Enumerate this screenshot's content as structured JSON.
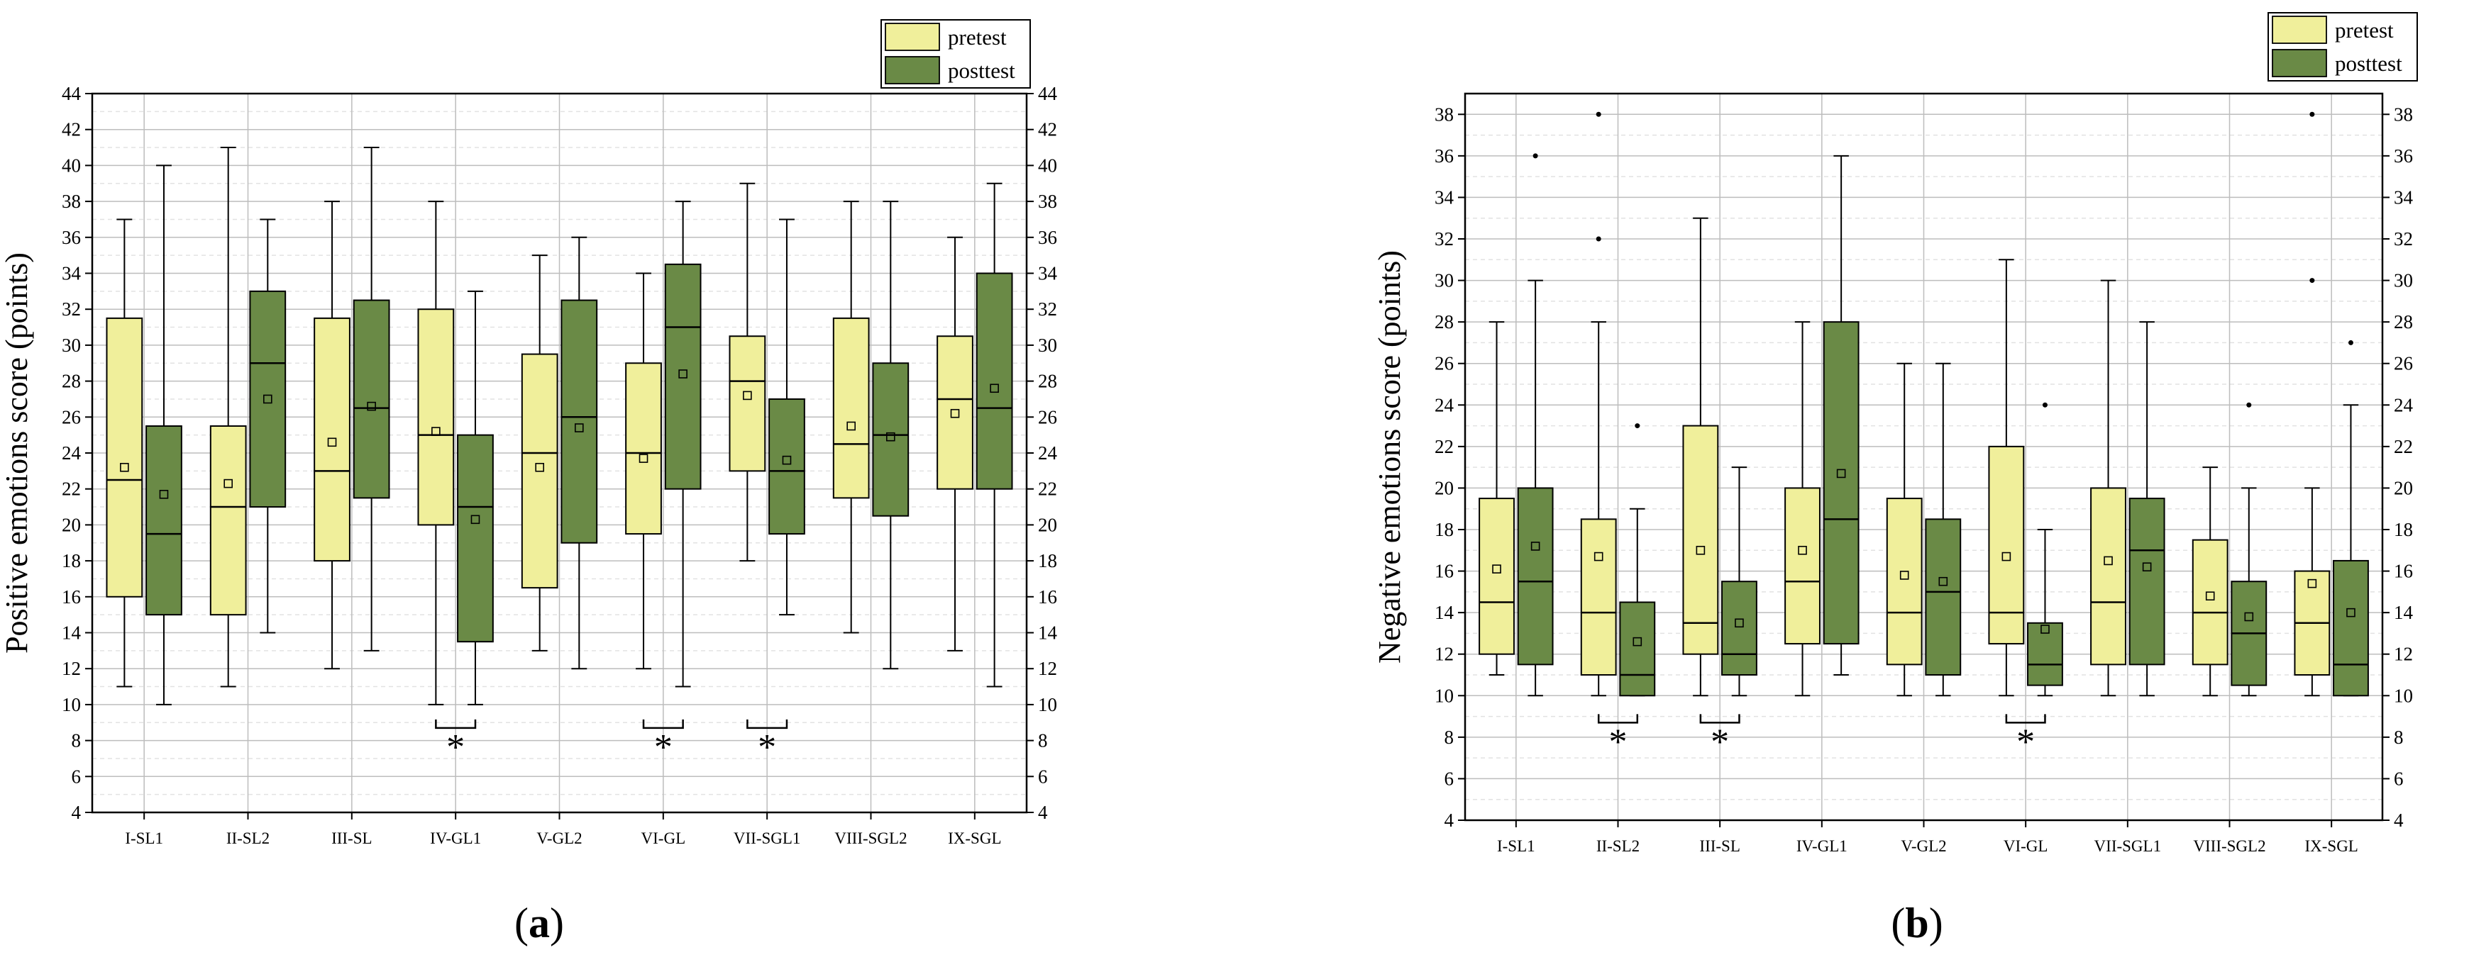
{
  "colors": {
    "pretest": "#f0ef9b",
    "posttest": "#6a8a46",
    "grid_major": "#bdbdbd",
    "grid_minor": "#e2e2e2"
  },
  "legend": {
    "pretest": "pretest",
    "posttest": "posttest"
  },
  "captions": {
    "a": "(a)",
    "b": "(b)"
  },
  "chart_data": [
    {
      "type": "box",
      "id": "a",
      "ylabel": "Positive emotions score (points)",
      "ylim": [
        4,
        44
      ],
      "yticks": [
        4,
        6,
        8,
        10,
        12,
        14,
        16,
        18,
        20,
        22,
        24,
        26,
        28,
        30,
        32,
        34,
        36,
        38,
        40,
        42,
        44
      ],
      "categories": [
        "I-SL1",
        "II-SL2",
        "III-SL",
        "IV-GL1",
        "V-GL2",
        "VI-GL",
        "VII-SGL1",
        "VIII-SGL2",
        "IX-SGL"
      ],
      "series": [
        {
          "name": "pretest",
          "boxes": [
            {
              "min": 11,
              "q1": 16,
              "median": 22.5,
              "q3": 31.5,
              "max": 37,
              "mean": 23.2,
              "outliers": []
            },
            {
              "min": 11,
              "q1": 15,
              "median": 21,
              "q3": 25.5,
              "max": 41,
              "mean": 22.3,
              "outliers": []
            },
            {
              "min": 12,
              "q1": 18,
              "median": 23,
              "q3": 31.5,
              "max": 38,
              "mean": 24.6,
              "outliers": []
            },
            {
              "min": 10,
              "q1": 20,
              "median": 25,
              "q3": 32,
              "max": 38,
              "mean": 25.2,
              "outliers": []
            },
            {
              "min": 13,
              "q1": 16.5,
              "median": 24,
              "q3": 29.5,
              "max": 35,
              "mean": 23.2,
              "outliers": []
            },
            {
              "min": 12,
              "q1": 19.5,
              "median": 24,
              "q3": 29,
              "max": 34,
              "mean": 23.7,
              "outliers": []
            },
            {
              "min": 18,
              "q1": 23,
              "median": 28,
              "q3": 30.5,
              "max": 39,
              "mean": 27.2,
              "outliers": []
            },
            {
              "min": 14,
              "q1": 21.5,
              "median": 24.5,
              "q3": 31.5,
              "max": 38,
              "mean": 25.5,
              "outliers": []
            },
            {
              "min": 13,
              "q1": 22,
              "median": 27,
              "q3": 30.5,
              "max": 36,
              "mean": 26.2,
              "outliers": []
            }
          ]
        },
        {
          "name": "posttest",
          "boxes": [
            {
              "min": 10,
              "q1": 15,
              "median": 19.5,
              "q3": 25.5,
              "max": 40,
              "mean": 21.7,
              "outliers": []
            },
            {
              "min": 14,
              "q1": 21,
              "median": 29,
              "q3": 33,
              "max": 37,
              "mean": 27,
              "outliers": []
            },
            {
              "min": 13,
              "q1": 21.5,
              "median": 26.5,
              "q3": 32.5,
              "max": 41,
              "mean": 26.6,
              "outliers": []
            },
            {
              "min": 10,
              "q1": 13.5,
              "median": 21,
              "q3": 25,
              "max": 33,
              "mean": 20.3,
              "outliers": []
            },
            {
              "min": 12,
              "q1": 19,
              "median": 26,
              "q3": 32.5,
              "max": 36,
              "mean": 25.4,
              "outliers": []
            },
            {
              "min": 11,
              "q1": 22,
              "median": 31,
              "q3": 34.5,
              "max": 38,
              "mean": 28.4,
              "outliers": []
            },
            {
              "min": 15,
              "q1": 19.5,
              "median": 23,
              "q3": 27,
              "max": 37,
              "mean": 23.6,
              "outliers": []
            },
            {
              "min": 12,
              "q1": 20.5,
              "median": 25,
              "q3": 29,
              "max": 38,
              "mean": 24.9,
              "outliers": []
            },
            {
              "min": 11,
              "q1": 22,
              "median": 26.5,
              "q3": 34,
              "max": 39,
              "mean": 27.6,
              "outliers": []
            }
          ]
        }
      ],
      "significance": [
        {
          "category_index": 3,
          "label": "*"
        },
        {
          "category_index": 5,
          "label": "*"
        },
        {
          "category_index": 6,
          "label": "*"
        }
      ]
    },
    {
      "type": "box",
      "id": "b",
      "ylabel": "Negative emotions score (points)",
      "ylim": [
        4,
        39
      ],
      "yticks": [
        4,
        6,
        8,
        10,
        12,
        14,
        16,
        18,
        20,
        22,
        24,
        26,
        28,
        30,
        32,
        34,
        36,
        38
      ],
      "categories": [
        "I-SL1",
        "II-SL2",
        "III-SL",
        "IV-GL1",
        "V-GL2",
        "VI-GL",
        "VII-SGL1",
        "VIII-SGL2",
        "IX-SGL"
      ],
      "series": [
        {
          "name": "pretest",
          "boxes": [
            {
              "min": 11,
              "q1": 12,
              "median": 14.5,
              "q3": 19.5,
              "max": 28,
              "mean": 16.1,
              "outliers": []
            },
            {
              "min": 10,
              "q1": 11,
              "median": 14,
              "q3": 18.5,
              "max": 28,
              "mean": 16.7,
              "outliers": [
                32,
                38
              ]
            },
            {
              "min": 10,
              "q1": 12,
              "median": 13.5,
              "q3": 23,
              "max": 33,
              "mean": 17,
              "outliers": []
            },
            {
              "min": 10,
              "q1": 12.5,
              "median": 15.5,
              "q3": 20,
              "max": 28,
              "mean": 17,
              "outliers": []
            },
            {
              "min": 10,
              "q1": 11.5,
              "median": 14,
              "q3": 19.5,
              "max": 26,
              "mean": 15.8,
              "outliers": []
            },
            {
              "min": 10,
              "q1": 12.5,
              "median": 14,
              "q3": 22,
              "max": 31,
              "mean": 16.7,
              "outliers": []
            },
            {
              "min": 10,
              "q1": 11.5,
              "median": 14.5,
              "q3": 20,
              "max": 30,
              "mean": 16.5,
              "outliers": []
            },
            {
              "min": 10,
              "q1": 11.5,
              "median": 14,
              "q3": 17.5,
              "max": 21,
              "mean": 14.8,
              "outliers": []
            },
            {
              "min": 10,
              "q1": 11,
              "median": 13.5,
              "q3": 16,
              "max": 20,
              "mean": 15.4,
              "outliers": [
                30,
                38
              ]
            }
          ]
        },
        {
          "name": "posttest",
          "boxes": [
            {
              "min": 10,
              "q1": 11.5,
              "median": 15.5,
              "q3": 20,
              "max": 30,
              "mean": 17.2,
              "outliers": [
                36
              ]
            },
            {
              "min": 10,
              "q1": 10,
              "median": 11,
              "q3": 14.5,
              "max": 19,
              "mean": 12.6,
              "outliers": [
                23
              ]
            },
            {
              "min": 10,
              "q1": 11,
              "median": 12,
              "q3": 15.5,
              "max": 21,
              "mean": 13.5,
              "outliers": []
            },
            {
              "min": 11,
              "q1": 12.5,
              "median": 18.5,
              "q3": 28,
              "max": 36,
              "mean": 20.7,
              "outliers": []
            },
            {
              "min": 10,
              "q1": 11,
              "median": 15,
              "q3": 18.5,
              "max": 26,
              "mean": 15.5,
              "outliers": []
            },
            {
              "min": 10,
              "q1": 10.5,
              "median": 11.5,
              "q3": 13.5,
              "max": 18,
              "mean": 13.2,
              "outliers": [
                24
              ]
            },
            {
              "min": 10,
              "q1": 11.5,
              "median": 17,
              "q3": 19.5,
              "max": 28,
              "mean": 16.2,
              "outliers": []
            },
            {
              "min": 10,
              "q1": 10.5,
              "median": 13,
              "q3": 15.5,
              "max": 20,
              "mean": 13.8,
              "outliers": [
                24
              ]
            },
            {
              "min": 10,
              "q1": 10,
              "median": 11.5,
              "q3": 16.5,
              "max": 24,
              "mean": 14,
              "outliers": [
                27
              ]
            }
          ]
        }
      ],
      "significance": [
        {
          "category_index": 1,
          "label": "*"
        },
        {
          "category_index": 2,
          "label": "*"
        },
        {
          "category_index": 5,
          "label": "*"
        }
      ]
    }
  ]
}
